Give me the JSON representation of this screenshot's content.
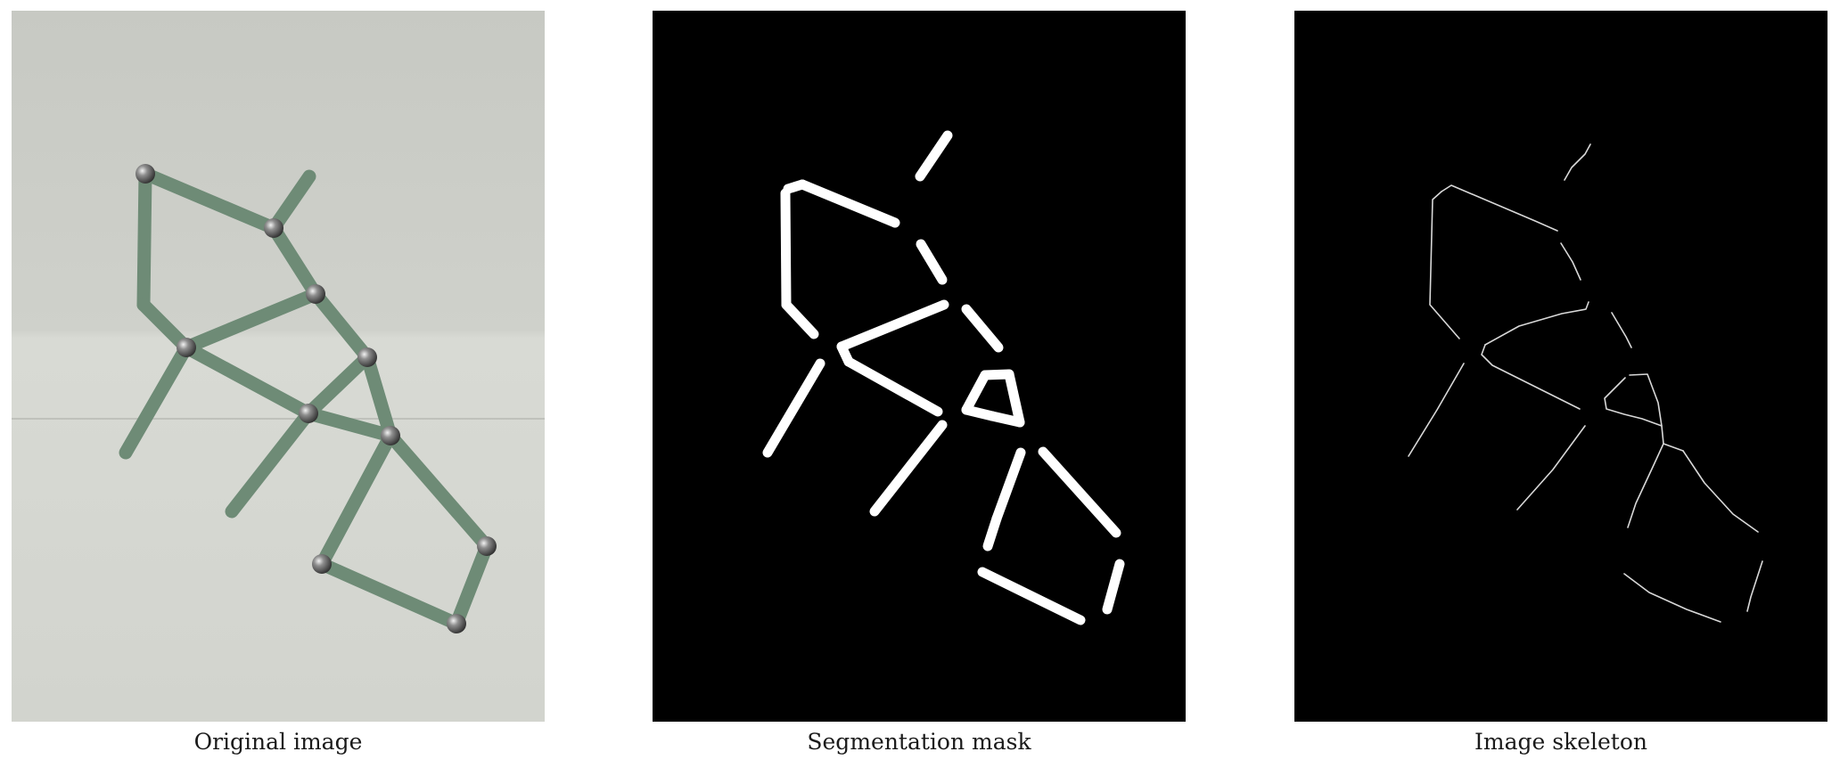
{
  "figure": {
    "panels": [
      {
        "caption": "Original image",
        "content": "photo of green magnetic rods joined by steel balls on white paper",
        "background": "#c8c9c4"
      },
      {
        "caption": "Segmentation mask",
        "content": "binary mask of the rods",
        "background": "#000000",
        "foreground": "#ffffff"
      },
      {
        "caption": "Image skeleton",
        "content": "one-pixel skeleton of the mask",
        "background": "#000000",
        "foreground": "#e6e6e6"
      }
    ]
  },
  "colors": {
    "rod": "#6e8b76",
    "rod_dark": "#4f6a58",
    "ball": "#8a8a8a"
  }
}
